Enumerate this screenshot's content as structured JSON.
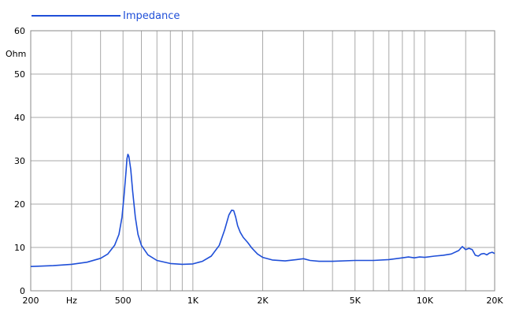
{
  "chart_data": {
    "type": "line",
    "legend": {
      "label": "Impedance",
      "position": "top-left"
    },
    "ylabel": "Ohm",
    "xaxis_scale": "log",
    "xlim": [
      200,
      20000
    ],
    "ylim": [
      0,
      60
    ],
    "xticks": [
      {
        "value": 200,
        "label": "200"
      },
      {
        "value": 300,
        "label": "Hz"
      },
      {
        "value": 500,
        "label": "500"
      },
      {
        "value": 1000,
        "label": "1K"
      },
      {
        "value": 2000,
        "label": "2K"
      },
      {
        "value": 5000,
        "label": "5K"
      },
      {
        "value": 10000,
        "label": "10K"
      },
      {
        "value": 20000,
        "label": "20K"
      }
    ],
    "yticks": [
      0,
      10,
      20,
      30,
      40,
      50,
      60
    ],
    "gridlines_x": [
      300,
      400,
      500,
      600,
      700,
      800,
      900,
      1000,
      2000,
      3000,
      4000,
      5000,
      6000,
      7000,
      8000,
      9000,
      10000,
      15000
    ],
    "grid": true,
    "line_color": "#1f4fd8",
    "series": [
      {
        "name": "Impedance",
        "x": [
          200,
          250,
          300,
          350,
          400,
          430,
          460,
          480,
          495,
          505,
          515,
          520,
          525,
          530,
          540,
          550,
          565,
          580,
          600,
          640,
          700,
          800,
          900,
          1000,
          1100,
          1200,
          1300,
          1370,
          1430,
          1470,
          1500,
          1530,
          1560,
          1600,
          1650,
          1720,
          1800,
          1900,
          2000,
          2200,
          2500,
          2800,
          3000,
          3200,
          3500,
          4000,
          5000,
          6000,
          7000,
          8000,
          8500,
          9000,
          9500,
          10000,
          11000,
          12000,
          13000,
          14000,
          14500,
          15000,
          15500,
          16000,
          16500,
          17000,
          17500,
          18000,
          18500,
          19000,
          19500,
          20000
        ],
        "y": [
          5.6,
          5.8,
          6.1,
          6.6,
          7.5,
          8.5,
          10.5,
          13,
          17,
          22,
          27.5,
          30.5,
          31.5,
          31,
          28,
          23,
          17,
          13,
          10.5,
          8.3,
          7,
          6.3,
          6.1,
          6.2,
          6.8,
          8,
          10.5,
          14,
          17.5,
          18.6,
          18.5,
          17,
          15,
          13.5,
          12.3,
          11.2,
          9.8,
          8.5,
          7.7,
          7.1,
          6.9,
          7.2,
          7.4,
          7,
          6.8,
          6.8,
          7,
          7,
          7.2,
          7.6,
          7.8,
          7.6,
          7.8,
          7.7,
          8,
          8.2,
          8.5,
          9.3,
          10.2,
          9.5,
          9.8,
          9.5,
          8.2,
          8.0,
          8.5,
          8.6,
          8.3,
          8.7,
          8.9,
          8.6
        ]
      }
    ]
  }
}
